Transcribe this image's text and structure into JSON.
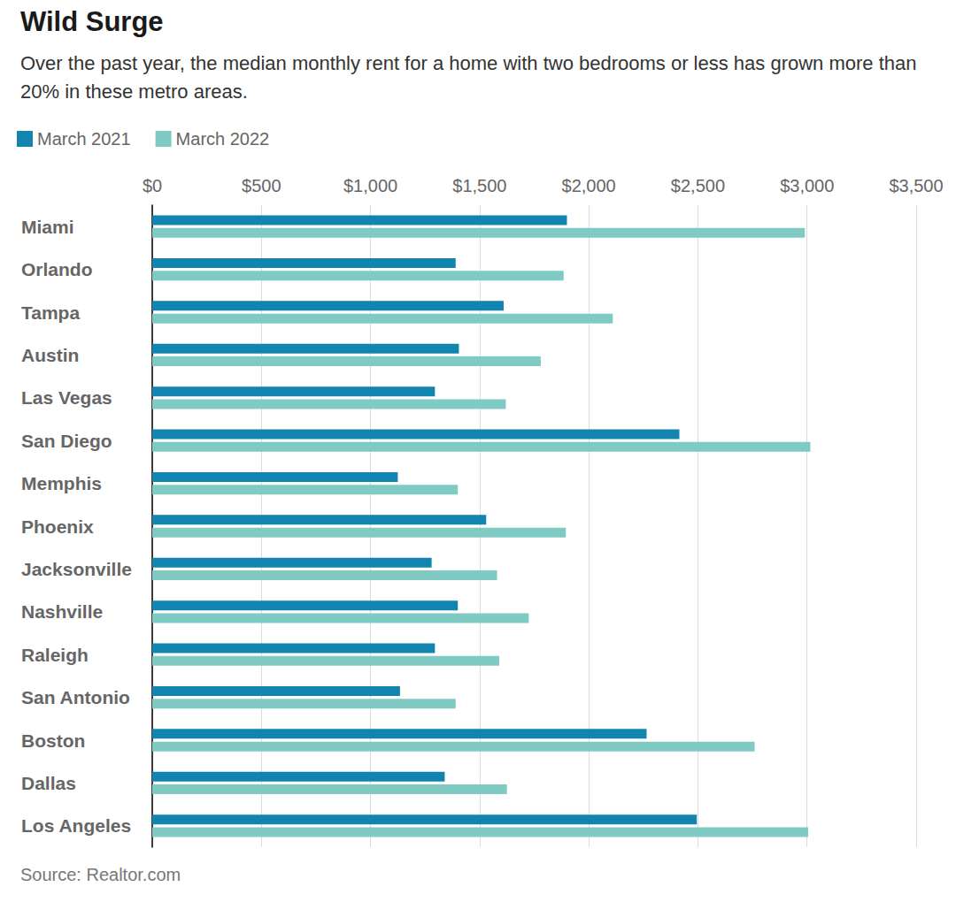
{
  "chart_data": {
    "type": "bar",
    "orientation": "horizontal",
    "title": "Wild Surge",
    "subtitle": "Over the past year, the median monthly rent for a home with two bedrooms or less has grown more than 20% in these metro areas.",
    "source": "Source: Realtor.com",
    "categories": [
      "Miami",
      "Orlando",
      "Tampa",
      "Austin",
      "Las Vegas",
      "San Diego",
      "Memphis",
      "Phoenix",
      "Jacksonville",
      "Nashville",
      "Raleigh",
      "San Antonio",
      "Boston",
      "Dallas",
      "Los Angeles"
    ],
    "series": [
      {
        "name": "March 2021",
        "color": "#1185b0",
        "values": [
          1900,
          1390,
          1610,
          1405,
          1295,
          2415,
          1125,
          1530,
          1280,
          1400,
          1295,
          1135,
          2265,
          1340,
          2495
        ]
      },
      {
        "name": "March 2022",
        "color": "#80cac4",
        "values": [
          2990,
          1885,
          2110,
          1780,
          1620,
          3015,
          1400,
          1895,
          1580,
          1725,
          1590,
          1390,
          2760,
          1625,
          3005
        ]
      }
    ],
    "xlim": [
      0,
      3500
    ],
    "xticks": [
      {
        "value": 0,
        "label": "$0"
      },
      {
        "value": 500,
        "label": "$500"
      },
      {
        "value": 1000,
        "label": "$1,000"
      },
      {
        "value": 1500,
        "label": "$1,500"
      },
      {
        "value": 2000,
        "label": "$2,000"
      },
      {
        "value": 2500,
        "label": "$2,500"
      },
      {
        "value": 3000,
        "label": "$3,000"
      },
      {
        "value": 3500,
        "label": "$3,500"
      }
    ],
    "grid": true,
    "legend": "top left"
  }
}
